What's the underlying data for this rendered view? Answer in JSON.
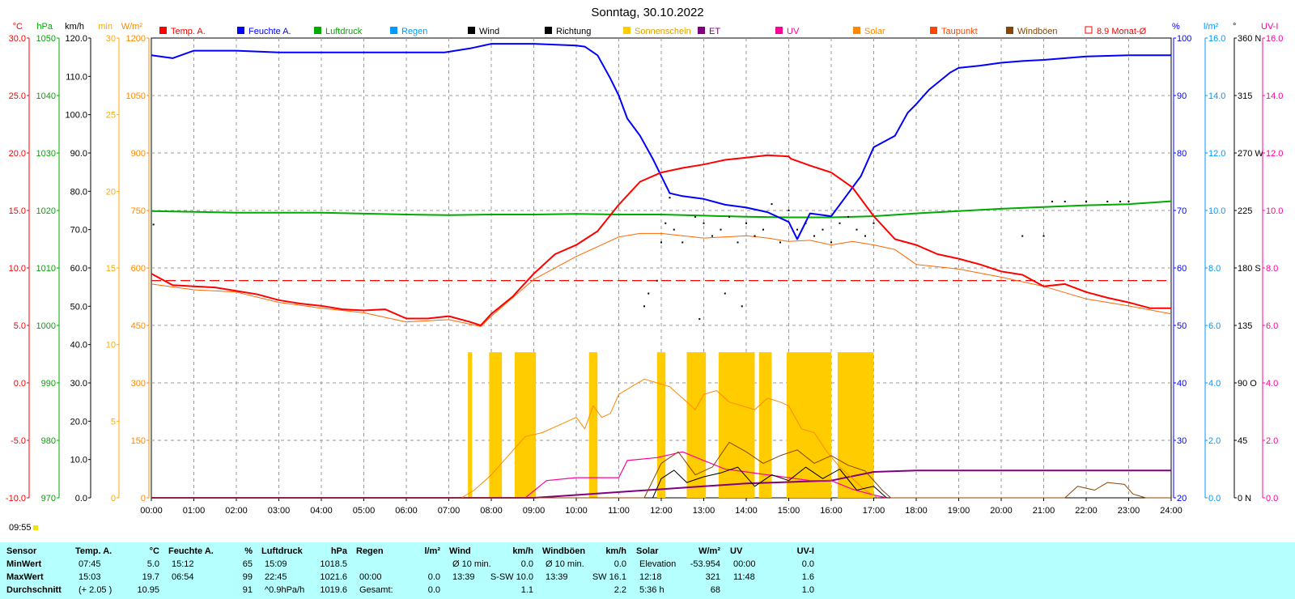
{
  "title": "Sonntag, 30.10.2022",
  "legend": [
    {
      "label": "Temp. A.",
      "color": "#ff0000"
    },
    {
      "label": "Feuchte A.",
      "color": "#0000ff"
    },
    {
      "label": "Luftdruck",
      "color": "#00aa00"
    },
    {
      "label": "Regen",
      "color": "#0099ff"
    },
    {
      "label": "Wind",
      "color": "#000000"
    },
    {
      "label": "Richtung",
      "color": "#000000"
    },
    {
      "label": "Sonnenschein",
      "color": "#ffcc00"
    },
    {
      "label": "ET",
      "color": "#800080"
    },
    {
      "label": "UV",
      "color": "#ff0099"
    },
    {
      "label": "Solar",
      "color": "#ff8800"
    },
    {
      "label": "Taupunkt",
      "color": "#ff4400"
    },
    {
      "label": "Windböen",
      "color": "#884400"
    },
    {
      "label": "8.9 Monat-Ø",
      "color": "#ff0000"
    }
  ],
  "axis_units": {
    "temp": "°C",
    "pressure": "hPa",
    "speed": "km/h",
    "sun_min": "min",
    "solar": "W/m²",
    "humidity": "%",
    "rain": "l/m²",
    "direction": "°",
    "uv": "UV-I"
  },
  "timestamp": "09:55",
  "chart_data": {
    "type": "line",
    "x_ticks": [
      "00:00",
      "01:00",
      "02:00",
      "03:00",
      "04:00",
      "05:00",
      "06:00",
      "07:00",
      "08:00",
      "09:00",
      "10:00",
      "11:00",
      "12:00",
      "13:00",
      "14:00",
      "15:00",
      "16:00",
      "17:00",
      "18:00",
      "19:00",
      "20:00",
      "21:00",
      "22:00",
      "23:00",
      "24:00"
    ],
    "axes": {
      "temp": {
        "ticks": [
          "30.0",
          "25.0",
          "20.0",
          "15.0",
          "10.0",
          "5.0",
          "0.0",
          "-5.0",
          "-10.0"
        ],
        "color": "#ff0000",
        "ylim": [
          -10,
          30
        ]
      },
      "pressure": {
        "ticks": [
          "1050",
          "1040",
          "1030",
          "1020",
          "1010",
          "1000",
          "990",
          "980",
          "970"
        ],
        "color": "#00aa00",
        "ylim": [
          970,
          1050
        ]
      },
      "speed": {
        "ticks": [
          "120.0",
          "110.0",
          "100.0",
          "90.0",
          "80.0",
          "70.0",
          "60.0",
          "50.0",
          "40.0",
          "30.0",
          "20.0",
          "10.0",
          "0.0"
        ],
        "color": "#000000",
        "ylim": [
          0,
          120
        ]
      },
      "sun_min": {
        "ticks": [
          "30",
          "25",
          "20",
          "15",
          "10",
          "5",
          "0"
        ],
        "color": "#ffaa00",
        "ylim": [
          0,
          30
        ]
      },
      "solar": {
        "ticks": [
          "1200",
          "1050",
          "900",
          "750",
          "600",
          "450",
          "300",
          "150",
          "0"
        ],
        "color": "#ff8800",
        "ylim": [
          0,
          1200
        ]
      },
      "humidity": {
        "ticks": [
          "100",
          "90",
          "80",
          "70",
          "60",
          "50",
          "40",
          "30",
          "20"
        ],
        "color": "#0000ff",
        "ylim": [
          20,
          100
        ]
      },
      "rain": {
        "ticks": [
          "16.0",
          "14.0",
          "12.0",
          "10.0",
          "8.0",
          "6.0",
          "4.0",
          "2.0",
          "0.0"
        ],
        "color": "#0099ff",
        "ylim": [
          0,
          16
        ]
      },
      "direction": {
        "ticks": [
          "360 N",
          "315",
          "270 W",
          "225",
          "180 S",
          "135",
          "90 O",
          "45",
          "0 N"
        ],
        "color": "#000000",
        "ylim": [
          0,
          360
        ]
      },
      "uv": {
        "ticks": [
          "16.0",
          "14.0",
          "12.0",
          "10.0",
          "8.0",
          "6.0",
          "4.0",
          "2.0",
          "0.0"
        ],
        "color": "#ff0099",
        "ylim": [
          0,
          16
        ]
      }
    },
    "series": [
      {
        "name": "Temp. A.",
        "axis": "temp",
        "color": "#ff0000",
        "x": [
          0,
          0.5,
          1,
          1.5,
          2,
          2.5,
          3,
          3.5,
          4,
          4.5,
          5,
          5.5,
          6,
          6.5,
          7,
          7.5,
          7.75,
          8,
          8.5,
          9,
          9.5,
          10,
          10.5,
          11,
          11.5,
          12,
          12.5,
          13,
          13.5,
          14,
          14.5,
          15,
          15.05,
          15.5,
          16,
          16.5,
          17,
          17.5,
          18,
          18.5,
          19,
          19.5,
          20,
          20.5,
          21,
          21.5,
          22,
          22.5,
          23,
          23.5,
          24
        ],
        "y": [
          9.5,
          8.5,
          8.4,
          8.3,
          8.0,
          7.7,
          7.2,
          6.9,
          6.7,
          6.4,
          6.3,
          6.4,
          5.6,
          5.6,
          5.8,
          5.3,
          5.0,
          6.0,
          7.5,
          9.5,
          11.2,
          12.0,
          13.2,
          15.5,
          17.5,
          18.3,
          18.7,
          19.0,
          19.4,
          19.6,
          19.8,
          19.7,
          19.5,
          18.9,
          18.3,
          17.0,
          14.5,
          12.5,
          12.0,
          11.2,
          10.8,
          10.3,
          9.7,
          9.4,
          8.4,
          8.6,
          7.9,
          7.4,
          7.0,
          6.5,
          6.5
        ]
      },
      {
        "name": "Taupunkt",
        "axis": "temp",
        "color": "#ff6600",
        "x": [
          0,
          1,
          2,
          3,
          4,
          5,
          6,
          7,
          7.75,
          8,
          9,
          10,
          11,
          11.5,
          12,
          12.5,
          13,
          13.5,
          14,
          14.5,
          15,
          15.5,
          16,
          16.5,
          17,
          17.5,
          18,
          19,
          20,
          21,
          22,
          23,
          24
        ],
        "y": [
          8.6,
          8.1,
          7.9,
          7.0,
          6.5,
          6.1,
          5.3,
          5.5,
          4.9,
          5.8,
          9.0,
          11.0,
          12.7,
          13.0,
          13.0,
          12.8,
          12.6,
          12.7,
          12.8,
          12.6,
          12.3,
          12.4,
          12.0,
          12.3,
          12.0,
          11.6,
          10.3,
          9.9,
          9.2,
          8.4,
          7.3,
          6.7,
          6.0
        ]
      },
      {
        "name": "Feuchte A.",
        "axis": "humidity",
        "color": "#0000ff",
        "x": [
          0,
          0.5,
          1,
          2,
          3,
          4,
          5,
          6,
          6.9,
          7.5,
          8,
          9,
          10,
          10.2,
          10.5,
          10.8,
          11,
          11.2,
          11.5,
          11.8,
          12,
          12.2,
          12.5,
          13,
          13.5,
          14,
          14.5,
          15,
          15.2,
          15.5,
          16,
          16.3,
          16.7,
          17,
          17.5,
          17.8,
          18,
          18.3,
          18.8,
          19,
          19.5,
          20,
          20.5,
          21,
          21.5,
          22,
          23,
          24
        ],
        "y": [
          97,
          96.5,
          97.8,
          97.8,
          97.5,
          97.5,
          97.5,
          97.5,
          97.5,
          98.2,
          99,
          99,
          98.7,
          98.5,
          97,
          93,
          90,
          86,
          83,
          79,
          76,
          73,
          72.5,
          72,
          71,
          70.5,
          69.7,
          68,
          65,
          69.5,
          69,
          72,
          76,
          81,
          83,
          87,
          88.5,
          91,
          94,
          94.8,
          95.2,
          95.7,
          96,
          96.2,
          96.5,
          96.8,
          97,
          97
        ]
      },
      {
        "name": "Luftdruck",
        "axis": "pressure",
        "color": "#00aa00",
        "x": [
          0,
          2,
          4,
          6,
          7,
          8,
          9,
          10,
          11,
          12,
          13,
          14,
          15,
          16,
          17,
          18,
          19,
          20,
          21,
          22,
          23,
          24
        ],
        "y": [
          1019.9,
          1019.6,
          1019.6,
          1019.3,
          1019.2,
          1019.3,
          1019.3,
          1019.4,
          1019.3,
          1019.3,
          1019.1,
          1018.9,
          1018.8,
          1018.8,
          1019.0,
          1019.5,
          1019.9,
          1020.3,
          1020.6,
          1020.9,
          1021.1,
          1021.6
        ]
      },
      {
        "name": "Solar",
        "axis": "solar",
        "color": "#ff8800",
        "x": [
          7.3,
          7.6,
          8,
          8.4,
          8.8,
          9.2,
          9.6,
          10,
          10.2,
          10.4,
          10.6,
          10.8,
          11,
          11.3,
          11.6,
          11.9,
          12.2,
          12.5,
          12.8,
          13,
          13.3,
          13.6,
          13.9,
          14.2,
          14.5,
          14.8,
          15,
          15.3,
          15.6,
          15.9,
          16.2,
          16.5,
          16.8,
          17.1
        ],
        "y": [
          0,
          20,
          60,
          110,
          160,
          170,
          190,
          210,
          180,
          240,
          210,
          220,
          270,
          290,
          310,
          300,
          290,
          260,
          230,
          270,
          280,
          250,
          240,
          230,
          260,
          250,
          240,
          180,
          170,
          120,
          80,
          50,
          20,
          0
        ]
      },
      {
        "name": "ET",
        "axis": "rain",
        "color": "#800080",
        "x": [
          0,
          9,
          10,
          11,
          12,
          13,
          14,
          15,
          16,
          17,
          18,
          19,
          20,
          21,
          22,
          23,
          24
        ],
        "y": [
          0,
          0,
          0.1,
          0.2,
          0.3,
          0.4,
          0.5,
          0.55,
          0.6,
          0.9,
          0.95,
          0.95,
          0.95,
          0.95,
          0.95,
          0.95,
          0.95
        ]
      },
      {
        "name": "UV",
        "axis": "uv",
        "color": "#ff0099",
        "x": [
          0,
          8.8,
          9.3,
          10,
          11,
          11.2,
          11.9,
          12.5,
          13,
          13.5,
          14,
          14.5,
          15,
          15.5,
          16,
          16.5,
          17,
          17.3
        ],
        "y": [
          0,
          0,
          0.6,
          0.7,
          0.7,
          1.3,
          1.4,
          1.6,
          1.3,
          1.0,
          0.9,
          0.8,
          0.7,
          0.6,
          0.6,
          0.3,
          0.1,
          0
        ]
      },
      {
        "name": "Wind",
        "axis": "speed",
        "color": "#000000",
        "x": [
          0,
          11.8,
          12,
          12.3,
          12.6,
          13,
          13.4,
          13.8,
          14.2,
          14.6,
          15,
          15.4,
          15.8,
          16.2,
          16.6,
          17,
          17.3,
          24
        ],
        "y": [
          0,
          0,
          5.0,
          7.2,
          4.0,
          5.5,
          6.5,
          8.0,
          3.0,
          6.0,
          4.5,
          8.0,
          5.0,
          7.5,
          2.0,
          3.0,
          0,
          0
        ]
      },
      {
        "name": "Windböen",
        "axis": "speed",
        "color": "#884400",
        "x": [
          0,
          11.6,
          12,
          12.4,
          12.8,
          13.2,
          13.6,
          14,
          14.4,
          14.8,
          15.2,
          15.6,
          16,
          16.4,
          16.8,
          17.2,
          17.4,
          21.5,
          21.8,
          22.2,
          22.5,
          22.9,
          23.1,
          23.4,
          24
        ],
        "y": [
          0,
          0,
          9.0,
          12.0,
          6.0,
          8.0,
          14.5,
          12.0,
          9.0,
          11.0,
          12.5,
          9.0,
          11.0,
          8.5,
          7.0,
          2.0,
          0,
          0,
          3.0,
          2.0,
          4.0,
          3.5,
          1.0,
          0,
          0
        ]
      }
    ],
    "monthly_mean": {
      "name": "8.9 Monat-Ø",
      "value": 8.9,
      "axis": "temp",
      "color": "#ff0000",
      "dashed": true
    },
    "sunshine": {
      "axis": "sun_min",
      "color": "#ffcc00",
      "intervals": [
        [
          7.45,
          7.55
        ],
        [
          7.95,
          8.25
        ],
        [
          8.55,
          9.05
        ],
        [
          10.3,
          10.5
        ],
        [
          11.9,
          12.1
        ],
        [
          12.6,
          13.05
        ],
        [
          13.35,
          14.2
        ],
        [
          14.3,
          14.6
        ],
        [
          14.95,
          16.0
        ],
        [
          16.15,
          17.0
        ]
      ],
      "level": 9.5
    },
    "wind_direction_points": {
      "axis": "direction",
      "color": "#000000",
      "x": [
        0.05,
        12.0,
        12.1,
        12.2,
        12.3,
        12.5,
        12.8,
        13.0,
        13.2,
        13.4,
        13.6,
        13.8,
        14.0,
        14.2,
        14.4,
        14.6,
        14.8,
        15.0,
        15.2,
        15.4,
        15.6,
        15.8,
        16.0,
        16.2,
        16.4,
        16.6,
        16.8,
        17.0,
        20.5,
        21.0,
        21.2,
        21.5,
        22.0,
        22.5,
        22.8,
        23.0,
        11.6,
        11.7,
        11.9,
        12.9,
        13.5,
        13.9
      ],
      "y": [
        214,
        200,
        215,
        235,
        210,
        200,
        220,
        215,
        205,
        210,
        220,
        200,
        215,
        205,
        210,
        230,
        200,
        225,
        210,
        215,
        205,
        210,
        200,
        215,
        220,
        210,
        205,
        215,
        205,
        205,
        232,
        232,
        232,
        232,
        232,
        232,
        150,
        160,
        170,
        140,
        160,
        150
      ]
    }
  },
  "stats": {
    "headers": [
      {
        "label": "Sensor",
        "unit": ""
      },
      {
        "label": "Temp. A.",
        "unit": "°C"
      },
      {
        "label": "Feuchte A.",
        "unit": "%"
      },
      {
        "label": "Luftdruck",
        "unit": "hPa"
      },
      {
        "label": "Regen",
        "unit": "l/m²"
      },
      {
        "label": "Wind",
        "unit": "km/h"
      },
      {
        "label": "Windböen",
        "unit": "km/h"
      },
      {
        "label": "Solar",
        "unit": "W/m²"
      },
      {
        "label": "UV",
        "unit": "UV-I"
      }
    ],
    "rows": [
      {
        "label": "MinWert",
        "cells": [
          [
            "07:45",
            "5.0"
          ],
          [
            "15:12",
            "65"
          ],
          [
            "15:09",
            "1018.5"
          ],
          [
            "",
            ""
          ],
          [
            "Ø 10 min.",
            "0.0"
          ],
          [
            "Ø 10 min.",
            "0.0"
          ],
          [
            "Elevation",
            "-53.954"
          ],
          [
            "00:00",
            "0.0"
          ]
        ]
      },
      {
        "label": "MaxWert",
        "cells": [
          [
            "15:03",
            "19.7"
          ],
          [
            "06:54",
            "99"
          ],
          [
            "22:45",
            "1021.6"
          ],
          [
            "00:00",
            "0.0"
          ],
          [
            "13:39",
            "S-SW 10.0"
          ],
          [
            "13:39",
            "SW 16.1"
          ],
          [
            "12:18",
            "321"
          ],
          [
            "11:48",
            "1.6"
          ]
        ]
      },
      {
        "label": "Durchschnitt",
        "cells": [
          [
            "(+ 2.05 )",
            "10.95"
          ],
          [
            "",
            "91"
          ],
          [
            "^0.9hPa/h",
            "1019.6"
          ],
          [
            "Gesamt:",
            "0.0"
          ],
          [
            "",
            "1.1"
          ],
          [
            "",
            "2.2"
          ],
          [
            "5:36 h",
            "68"
          ],
          [
            "",
            "1.0"
          ]
        ]
      }
    ]
  }
}
